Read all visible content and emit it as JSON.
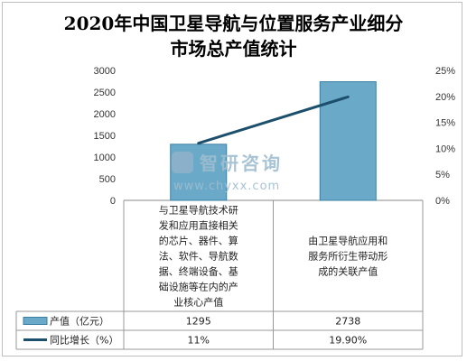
{
  "title_lines": [
    "2020年中国卫星导航与位置服务产业细分",
    "市场总产值统计"
  ],
  "watermark": {
    "brand": "智研咨询",
    "url": "www.chyxx.com"
  },
  "colors": {
    "bar": "#6aa9c8",
    "bar_dark": "#3b7fa3",
    "line": "#1c4f6b",
    "grid": "#d0d0d0"
  },
  "chart_data": {
    "type": "bar",
    "categories": [
      "与卫星导航技术研发和应用直接相关的芯片、器件、算法、软件、导航数据、终端设备、基础设施等在内的产业核心产值",
      "由卫星导航应用和服务所衍生带动形成的关联产值"
    ],
    "category_lines": [
      [
        "与卫星导航技术研",
        "发和应用直接相关",
        "的芯片、器件、算",
        "法、软件、导航数",
        "据、终端设备、基",
        "础设施等在内的产",
        "业核心产值"
      ],
      [
        "由卫星导航应用和",
        "服务所衍生带动形",
        "成的关联产值"
      ]
    ],
    "series": [
      {
        "name": "产值（亿元）",
        "type": "bar",
        "axis": "left",
        "values": [
          1295,
          2738
        ],
        "labels": [
          "1295",
          "2738"
        ]
      },
      {
        "name": "同比增长（%）",
        "type": "line",
        "axis": "right",
        "values": [
          11,
          19.9
        ],
        "labels": [
          "11%",
          "19.90%"
        ]
      }
    ],
    "y_left": {
      "min": 0,
      "max": 3000,
      "ticks": [
        "0",
        "500",
        "1000",
        "1500",
        "2000",
        "2500",
        "3000"
      ],
      "tick_values": [
        0,
        500,
        1000,
        1500,
        2000,
        2500,
        3000
      ]
    },
    "y_right": {
      "min": 0,
      "max": 25,
      "ticks": [
        "0%",
        "5%",
        "10%",
        "15%",
        "20%",
        "25%"
      ],
      "tick_values": [
        0,
        5,
        10,
        15,
        20,
        25
      ]
    },
    "legend": "data-table-left",
    "grid": false
  }
}
